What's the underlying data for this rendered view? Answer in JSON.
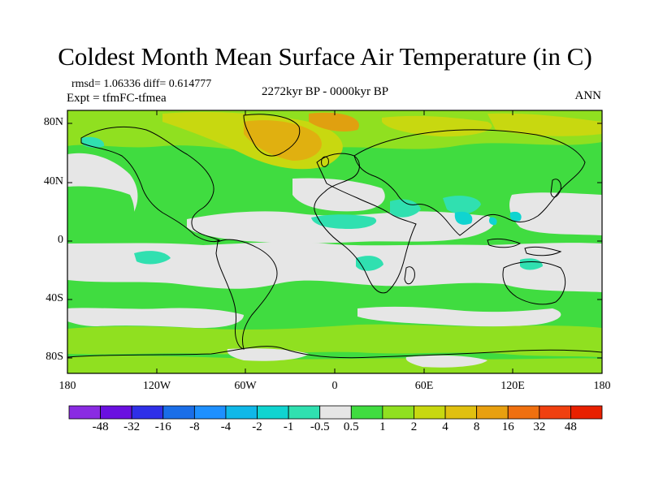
{
  "title": "Coldest Month Mean Surface Air Temperature (in C)",
  "stats": "rmsd= 1.06336 diff= 0.614777",
  "experiment": "Expt = tfmFC-tfmea",
  "period": "2272kyr BP - 0000kyr BP",
  "season": "ANN",
  "axes": {
    "y_ticks": [
      "80N",
      "40N",
      "0",
      "40S",
      "80S"
    ],
    "x_ticks": [
      "180",
      "120W",
      "60W",
      "0",
      "60E",
      "120E",
      "180"
    ]
  },
  "colorbar": {
    "labels": [
      "-48",
      "-32",
      "-16",
      "-8",
      "-4",
      "-2",
      "-1",
      "-0.5",
      "0.5",
      "1",
      "2",
      "4",
      "8",
      "16",
      "32",
      "48"
    ],
    "colors": [
      "#8a2be2",
      "#6a10e0",
      "#2f30e8",
      "#1a6ee8",
      "#1e90ff",
      "#10b8e8",
      "#10d4d0",
      "#30e0b0",
      "#e6e6e6",
      "#40dc40",
      "#90e020",
      "#c8d810",
      "#e0c010",
      "#e8a010",
      "#f07010",
      "#f04010",
      "#e82000"
    ]
  },
  "palette": {
    "neutral": "#e6e6e6",
    "green": "#40dc40",
    "lime": "#90e020",
    "yellow": "#c8d810",
    "orange": "#e0b010",
    "cyan": "#30e0b0",
    "teal": "#10d4d0"
  }
}
